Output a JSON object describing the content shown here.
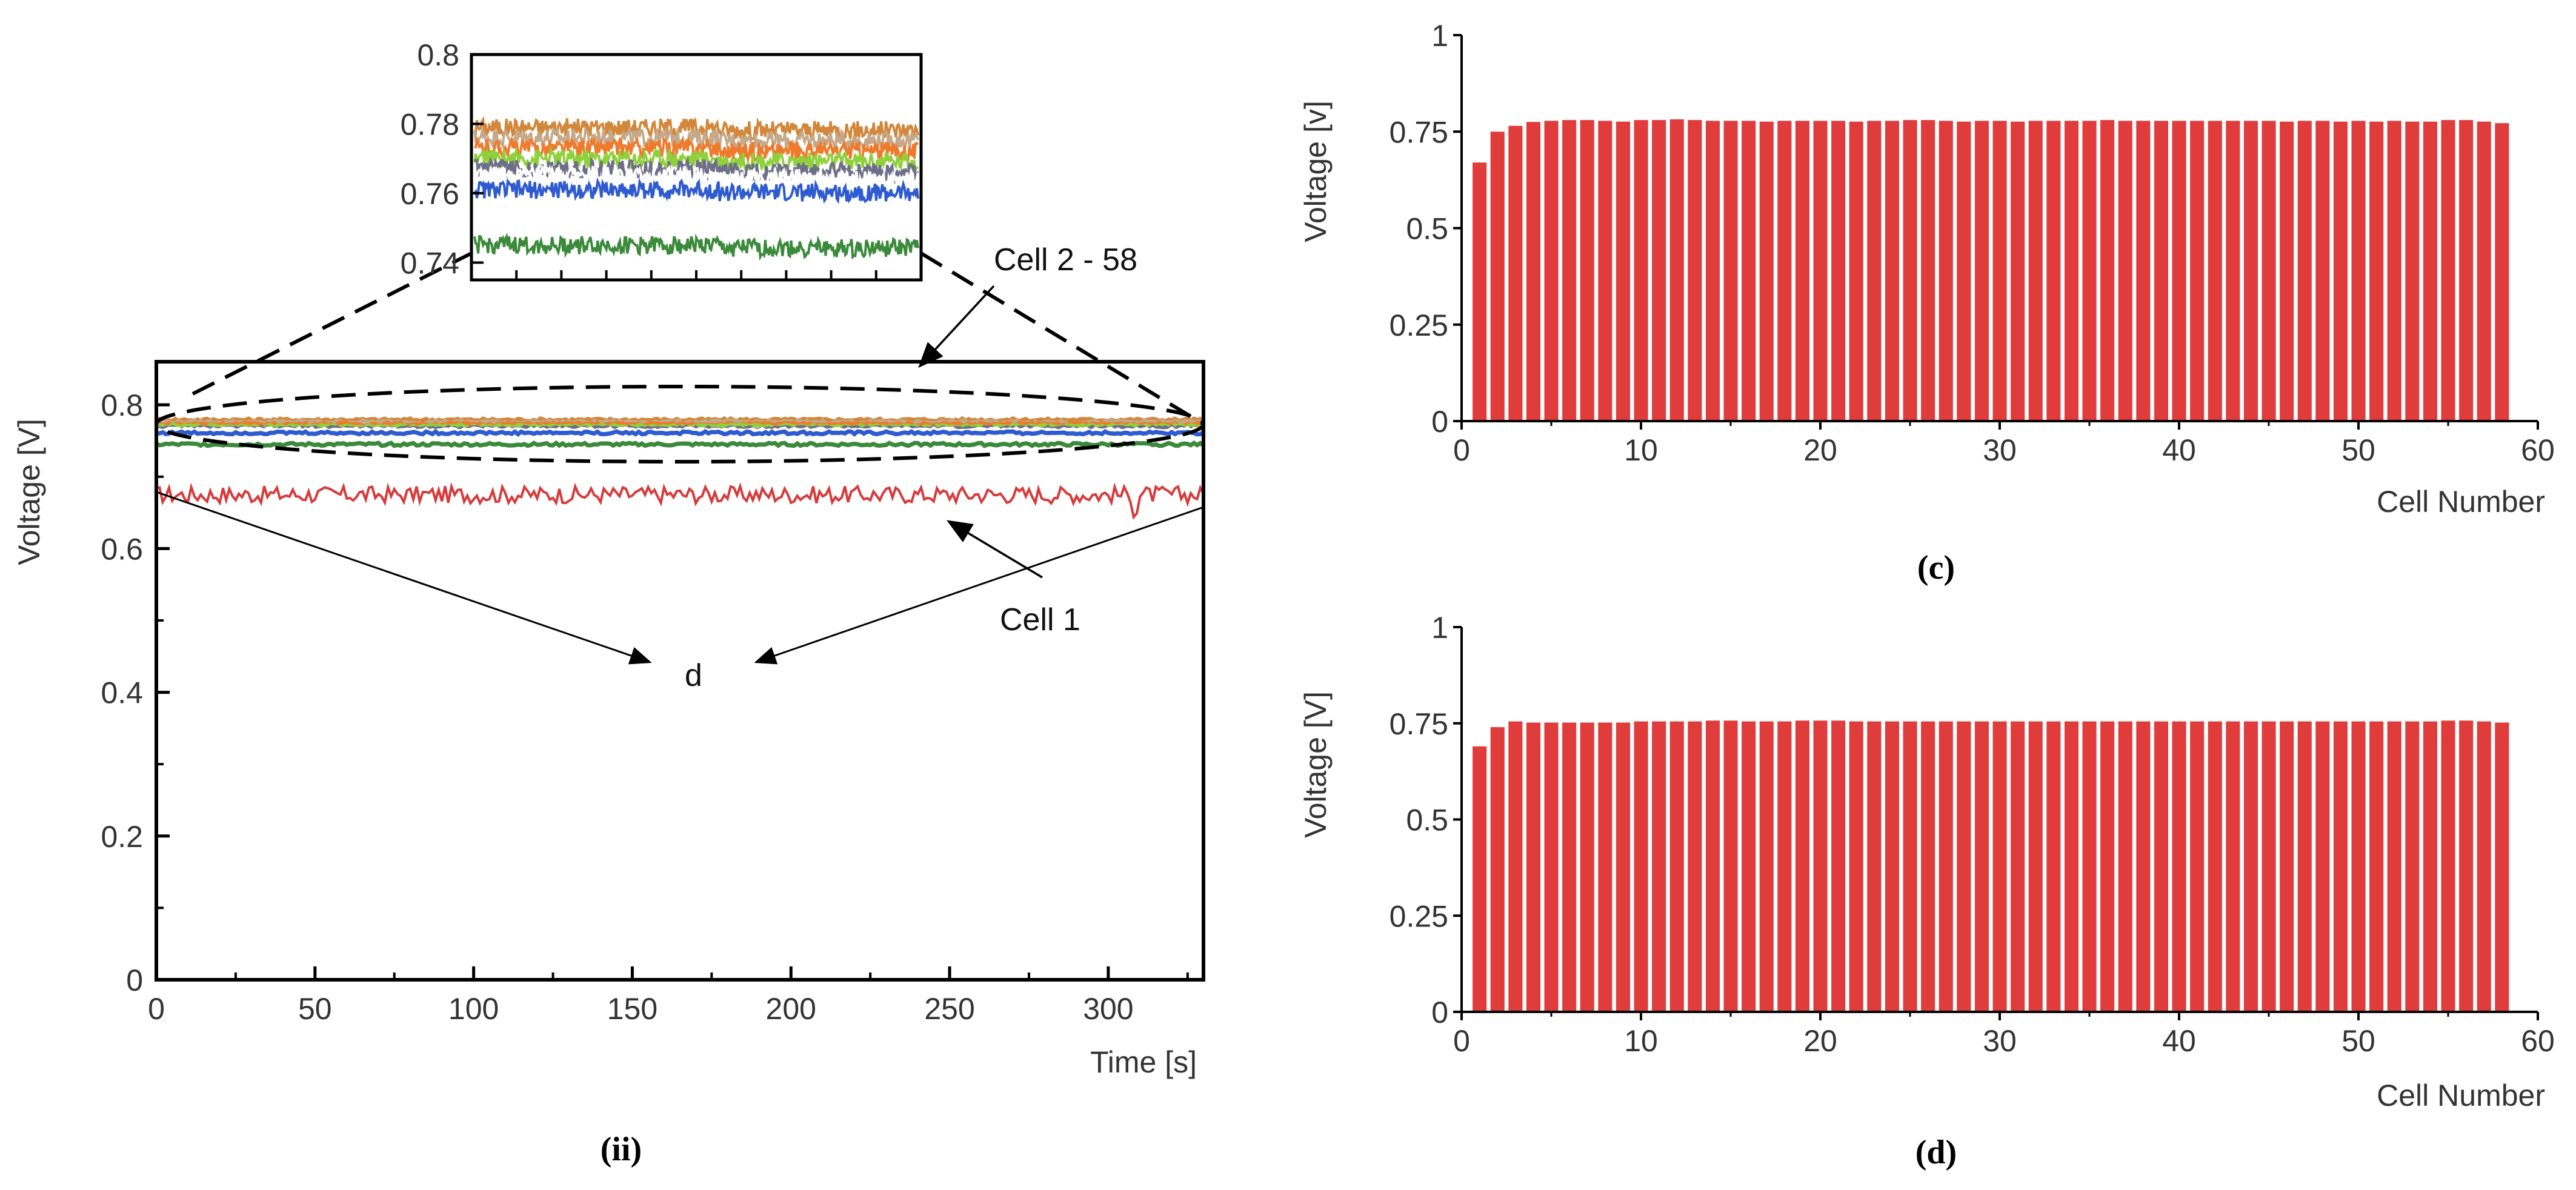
{
  "colors": {
    "bar": "#e03c3c",
    "cell1": "#d83a3a",
    "axis": "#000000",
    "series": [
      "#d2873a",
      "#c4a98a",
      "#f07a2c",
      "#8fd13a",
      "#6e6e88",
      "#ffffff",
      "#2e5bd0",
      "#3b8a3b"
    ]
  },
  "chart_data": [
    {
      "id": "ii",
      "type": "line",
      "caption": "(ii)",
      "xlabel": "Time [s]",
      "ylabel": "Voltage [V]",
      "xlim": [
        0,
        330
      ],
      "ylim": [
        0,
        0.86
      ],
      "xticks": [
        "0",
        "50",
        "100",
        "150",
        "200",
        "250",
        "300"
      ],
      "yticks": [
        "0",
        "0.2",
        "0.4",
        "0.6",
        "0.8"
      ],
      "series": [
        {
          "name": "Cell 1",
          "base": 0.675,
          "noise": 0.012
        },
        {
          "name": "Cell 2 - 58 (orange)",
          "base": 0.779,
          "noise": 0.002
        },
        {
          "name": "Cell 2 - 58 (tan)",
          "base": 0.776,
          "noise": 0.002
        },
        {
          "name": "Cell 2 - 58 (orange-red)",
          "base": 0.773,
          "noise": 0.002
        },
        {
          "name": "Cell 2 - 58 (light green)",
          "base": 0.77,
          "noise": 0.002
        },
        {
          "name": "Cell 2 - 58 (slate)",
          "base": 0.767,
          "noise": 0.002
        },
        {
          "name": "Cell 2 - 58 (white)",
          "base": 0.765,
          "noise": 0.002
        },
        {
          "name": "Cell 2 - 58 (blue)",
          "base": 0.761,
          "noise": 0.002
        },
        {
          "name": "Cell 2 - 58 (green)",
          "base": 0.745,
          "noise": 0.002
        }
      ],
      "annotations": {
        "cell_group": "Cell 2 - 58",
        "cell_single": "Cell 1",
        "difference": "d"
      },
      "inset": {
        "ylim": [
          0.735,
          0.8
        ],
        "yticks": [
          "0.8",
          "0.78",
          "0.76",
          "0.74"
        ],
        "ytick_values": [
          0.8,
          0.78,
          0.76,
          0.74
        ]
      }
    },
    {
      "id": "c",
      "type": "bar",
      "caption": "(c)",
      "xlabel": "Cell Number",
      "ylabel": "Voltage [v]",
      "xlim": [
        0,
        60
      ],
      "ylim": [
        0,
        1
      ],
      "xticks": [
        "0",
        "10",
        "20",
        "30",
        "40",
        "50",
        "60"
      ],
      "yticks": [
        "0",
        "0.25",
        "0.5",
        "0.75",
        "1"
      ],
      "categories": [
        1,
        2,
        3,
        4,
        5,
        6,
        7,
        8,
        9,
        10,
        11,
        12,
        13,
        14,
        15,
        16,
        17,
        18,
        19,
        20,
        21,
        22,
        23,
        24,
        25,
        26,
        27,
        28,
        29,
        30,
        31,
        32,
        33,
        34,
        35,
        36,
        37,
        38,
        39,
        40,
        41,
        42,
        43,
        44,
        45,
        46,
        47,
        48,
        49,
        50,
        51,
        52,
        53,
        54,
        55,
        56,
        57,
        58
      ],
      "values": [
        0.67,
        0.75,
        0.765,
        0.775,
        0.778,
        0.78,
        0.78,
        0.778,
        0.776,
        0.78,
        0.78,
        0.782,
        0.78,
        0.778,
        0.778,
        0.778,
        0.776,
        0.778,
        0.778,
        0.778,
        0.778,
        0.776,
        0.778,
        0.778,
        0.78,
        0.78,
        0.778,
        0.776,
        0.778,
        0.778,
        0.776,
        0.778,
        0.778,
        0.778,
        0.778,
        0.78,
        0.778,
        0.778,
        0.778,
        0.778,
        0.778,
        0.778,
        0.778,
        0.778,
        0.778,
        0.776,
        0.778,
        0.778,
        0.776,
        0.778,
        0.776,
        0.778,
        0.776,
        0.776,
        0.78,
        0.78,
        0.776,
        0.772
      ]
    },
    {
      "id": "d",
      "type": "bar",
      "caption": "(d)",
      "xlabel": "Cell Number",
      "ylabel": "Voltage [V]",
      "xlim": [
        0,
        60
      ],
      "ylim": [
        0,
        1
      ],
      "xticks": [
        "0",
        "10",
        "20",
        "30",
        "40",
        "50",
        "60"
      ],
      "yticks": [
        "0",
        "0.25",
        "0.5",
        "0.75",
        "1"
      ],
      "categories": [
        1,
        2,
        3,
        4,
        5,
        6,
        7,
        8,
        9,
        10,
        11,
        12,
        13,
        14,
        15,
        16,
        17,
        18,
        19,
        20,
        21,
        22,
        23,
        24,
        25,
        26,
        27,
        28,
        29,
        30,
        31,
        32,
        33,
        34,
        35,
        36,
        37,
        38,
        39,
        40,
        41,
        42,
        43,
        44,
        45,
        46,
        47,
        48,
        49,
        50,
        51,
        52,
        53,
        54,
        55,
        56,
        57,
        58
      ],
      "values": [
        0.69,
        0.74,
        0.755,
        0.752,
        0.752,
        0.752,
        0.752,
        0.752,
        0.752,
        0.755,
        0.755,
        0.755,
        0.755,
        0.757,
        0.757,
        0.755,
        0.755,
        0.755,
        0.757,
        0.757,
        0.757,
        0.755,
        0.755,
        0.755,
        0.755,
        0.755,
        0.755,
        0.755,
        0.755,
        0.755,
        0.755,
        0.755,
        0.755,
        0.755,
        0.755,
        0.755,
        0.755,
        0.755,
        0.755,
        0.755,
        0.755,
        0.755,
        0.755,
        0.755,
        0.755,
        0.755,
        0.755,
        0.755,
        0.755,
        0.755,
        0.755,
        0.755,
        0.755,
        0.755,
        0.757,
        0.757,
        0.755,
        0.752
      ]
    }
  ]
}
